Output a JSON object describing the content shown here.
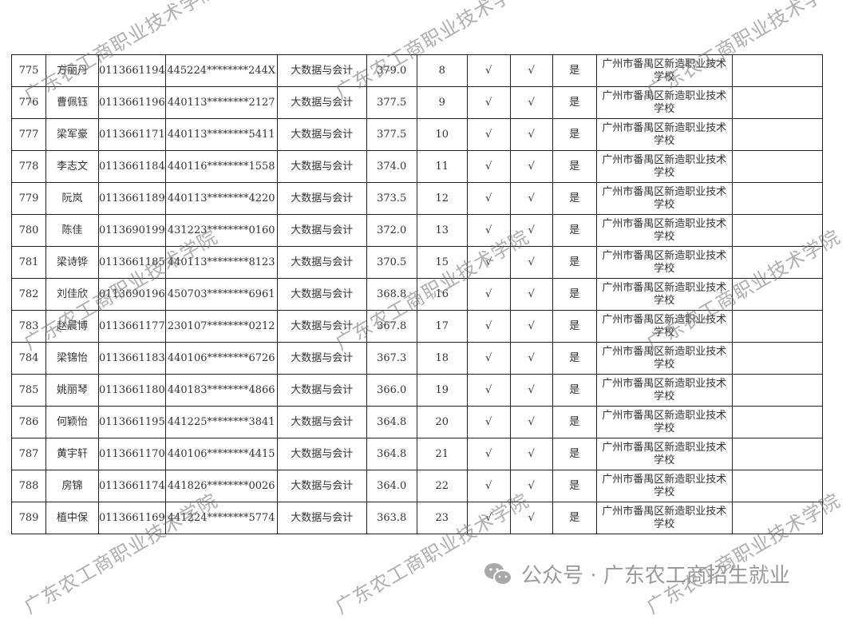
{
  "table": {
    "rows": [
      {
        "no": "775",
        "name": "方丽丹",
        "exam_no": "0113661194",
        "id": "445224********244X",
        "major": "大数据与会计",
        "score": "379.0",
        "rank": "8",
        "check1": "√",
        "check2": "√",
        "admitted": "是",
        "school": "广州市番禺区新造职业技术学校",
        "note": ""
      },
      {
        "no": "776",
        "name": "曹佩钰",
        "exam_no": "0113661196",
        "id": "440113********2127",
        "major": "大数据与会计",
        "score": "377.5",
        "rank": "9",
        "check1": "√",
        "check2": "√",
        "admitted": "是",
        "school": "广州市番禺区新造职业技术学校",
        "note": ""
      },
      {
        "no": "777",
        "name": "梁军豪",
        "exam_no": "0113661171",
        "id": "440113********5411",
        "major": "大数据与会计",
        "score": "377.5",
        "rank": "10",
        "check1": "√",
        "check2": "√",
        "admitted": "是",
        "school": "广州市番禺区新造职业技术学校",
        "note": ""
      },
      {
        "no": "778",
        "name": "李志文",
        "exam_no": "0113661184",
        "id": "440116********1558",
        "major": "大数据与会计",
        "score": "374.0",
        "rank": "11",
        "check1": "√",
        "check2": "√",
        "admitted": "是",
        "school": "广州市番禺区新造职业技术学校",
        "note": ""
      },
      {
        "no": "779",
        "name": "阮岚",
        "exam_no": "0113661189",
        "id": "440113********4220",
        "major": "大数据与会计",
        "score": "373.5",
        "rank": "12",
        "check1": "√",
        "check2": "√",
        "admitted": "是",
        "school": "广州市番禺区新造职业技术学校",
        "note": ""
      },
      {
        "no": "780",
        "name": "陈佳",
        "exam_no": "0113690199",
        "id": "431223********0160",
        "major": "大数据与会计",
        "score": "372.0",
        "rank": "13",
        "check1": "√",
        "check2": "√",
        "admitted": "是",
        "school": "广州市番禺区新造职业技术学校",
        "note": ""
      },
      {
        "no": "781",
        "name": "梁诗铧",
        "exam_no": "0113661185",
        "id": "440113********8123",
        "major": "大数据与会计",
        "score": "370.5",
        "rank": "15",
        "check1": "√",
        "check2": "√",
        "admitted": "是",
        "school": "广州市番禺区新造职业技术学校",
        "note": ""
      },
      {
        "no": "782",
        "name": "刘佳欣",
        "exam_no": "0113690196",
        "id": "450703********6961",
        "major": "大数据与会计",
        "score": "368.8",
        "rank": "16",
        "check1": "√",
        "check2": "√",
        "admitted": "是",
        "school": "广州市番禺区新造职业技术学校",
        "note": ""
      },
      {
        "no": "783",
        "name": "赵晨博",
        "exam_no": "0113661177",
        "id": "230107********0212",
        "major": "大数据与会计",
        "score": "367.8",
        "rank": "17",
        "check1": "√",
        "check2": "√",
        "admitted": "是",
        "school": "广州市番禺区新造职业技术学校",
        "note": ""
      },
      {
        "no": "784",
        "name": "梁锦怡",
        "exam_no": "0113661183",
        "id": "440106********6726",
        "major": "大数据与会计",
        "score": "367.3",
        "rank": "18",
        "check1": "√",
        "check2": "√",
        "admitted": "是",
        "school": "广州市番禺区新造职业技术学校",
        "note": ""
      },
      {
        "no": "785",
        "name": "姚丽琴",
        "exam_no": "0113661180",
        "id": "440183********4866",
        "major": "大数据与会计",
        "score": "366.0",
        "rank": "19",
        "check1": "√",
        "check2": "√",
        "admitted": "是",
        "school": "广州市番禺区新造职业技术学校",
        "note": ""
      },
      {
        "no": "786",
        "name": "何颖怡",
        "exam_no": "0113661195",
        "id": "441225********3841",
        "major": "大数据与会计",
        "score": "364.8",
        "rank": "20",
        "check1": "√",
        "check2": "√",
        "admitted": "是",
        "school": "广州市番禺区新造职业技术学校",
        "note": ""
      },
      {
        "no": "787",
        "name": "黄宇轩",
        "exam_no": "0113661170",
        "id": "440106********4415",
        "major": "大数据与会计",
        "score": "364.8",
        "rank": "21",
        "check1": "√",
        "check2": "√",
        "admitted": "是",
        "school": "广州市番禺区新造职业技术学校",
        "note": ""
      },
      {
        "no": "788",
        "name": "房锦",
        "exam_no": "0113661174",
        "id": "441826********0026",
        "major": "大数据与会计",
        "score": "364.0",
        "rank": "22",
        "check1": "√",
        "check2": "√",
        "admitted": "是",
        "school": "广州市番禺区新造职业技术学校",
        "note": ""
      },
      {
        "no": "789",
        "name": "植中保",
        "exam_no": "0113661169",
        "id": "441224********5774",
        "major": "大数据与会计",
        "score": "363.8",
        "rank": "23",
        "check1": "√",
        "check2": "√",
        "admitted": "是",
        "school": "广州市番禺区新造职业技术学校",
        "note": ""
      }
    ]
  },
  "watermark": {
    "text": "广东农工商职业技术学院"
  },
  "footer": {
    "text": "公众号 · 广东农工商招生就业",
    "icon": "wechat-icon"
  }
}
